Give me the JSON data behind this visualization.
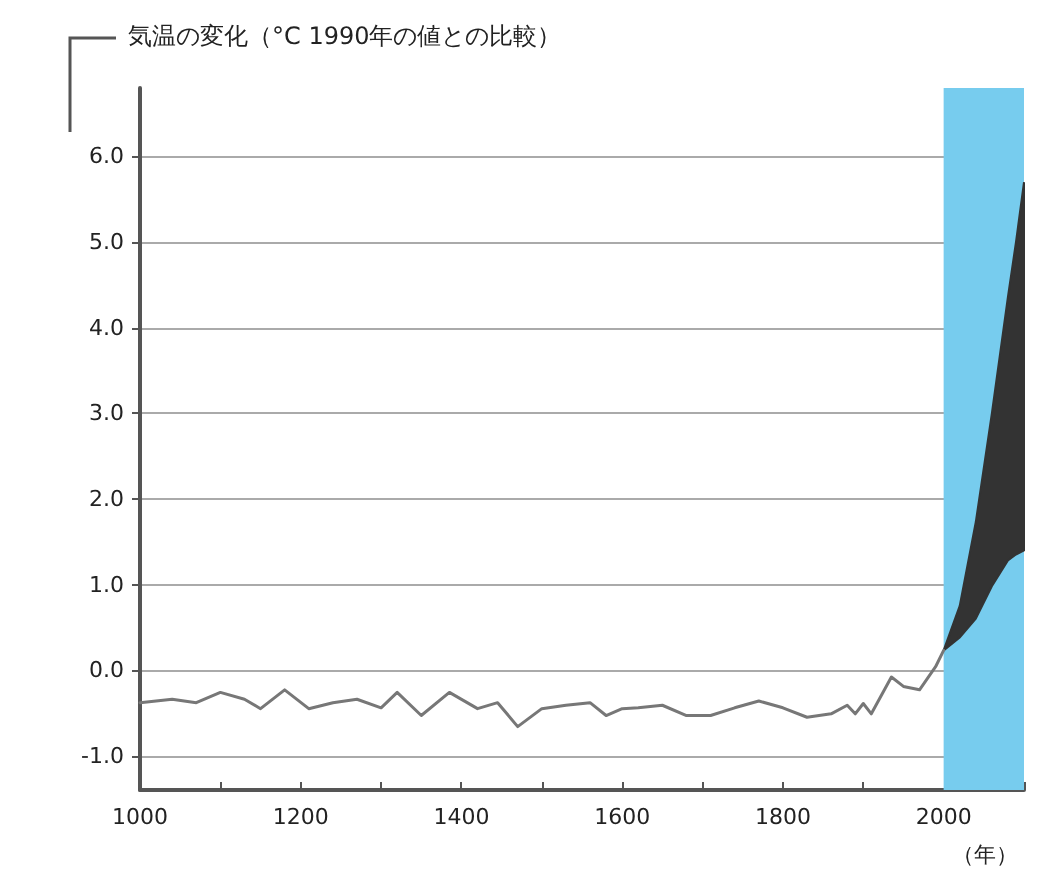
{
  "chart_data": {
    "type": "line",
    "ylabel": "気温の変化（°C 1990年の値との比較）",
    "xlabel": "（年）",
    "xlim": [
      1000,
      2100
    ],
    "xticks": [
      1000,
      {
        "value": 1100,
        "label": null
      },
      1200,
      {
        "value": 1300,
        "label": null
      },
      1400,
      {
        "value": 1500,
        "label": null
      },
      1600,
      {
        "value": 1700,
        "label": null
      },
      1800,
      {
        "value": 1900,
        "label": null
      },
      2000,
      {
        "value": 2100,
        "label": null
      }
    ],
    "ylim": [
      -1.4,
      6.8
    ],
    "yticks": [
      {
        "value": -1,
        "label": "-1.0"
      },
      {
        "value": 0,
        "label": "0.0"
      },
      {
        "value": 1,
        "label": "1.0"
      },
      {
        "value": 2,
        "label": "2.0"
      },
      {
        "value": 3,
        "label": "3.0"
      },
      {
        "value": 4,
        "label": "4.0"
      },
      {
        "value": 5,
        "label": "5.0"
      },
      {
        "value": 6,
        "label": "6.0"
      }
    ],
    "grid": "y",
    "marker": "none",
    "line_style": "solid",
    "bands": [
      {
        "axis": "x",
        "from": 2000,
        "to": 2100,
        "color": "#77ccee"
      }
    ],
    "series": [
      {
        "color": "#777777",
        "x": [
          1000,
          1040,
          1070,
          1100,
          1130,
          1150,
          1180,
          1210,
          1240,
          1270,
          1300,
          1320,
          1350,
          1385,
          1420,
          1445,
          1470,
          1500,
          1530,
          1560,
          1580,
          1600,
          1620,
          1650,
          1680,
          1710,
          1740,
          1770,
          1800,
          1830,
          1860,
          1880,
          1890,
          1900,
          1910,
          1935,
          1950,
          1970,
          1990,
          2000
        ],
        "values": [
          -0.38,
          -0.34,
          -0.38,
          -0.26,
          -0.34,
          -0.45,
          -0.23,
          -0.45,
          -0.38,
          -0.34,
          -0.44,
          -0.26,
          -0.53,
          -0.26,
          -0.45,
          -0.38,
          -0.66,
          -0.45,
          -0.41,
          -0.38,
          -0.53,
          -0.45,
          -0.44,
          -0.41,
          -0.53,
          -0.53,
          -0.44,
          -0.36,
          -0.44,
          -0.55,
          -0.51,
          -0.41,
          -0.51,
          -0.39,
          -0.51,
          -0.08,
          -0.19,
          -0.23,
          0.04,
          0.23
        ]
      },
      {
        "color": "#333333",
        "x": [
          2000,
          2020,
          2040,
          2060,
          2080,
          2090,
          2100
        ],
        "values": [
          null,
          null,
          null,
          null,
          null,
          null,
          null
        ],
        "lower": [
          0.23,
          0.38,
          0.6,
          0.98,
          1.28,
          1.35,
          1.4
        ],
        "upper": [
          0.23,
          0.75,
          1.73,
          3.0,
          4.36,
          5.0,
          5.7
        ]
      }
    ]
  }
}
